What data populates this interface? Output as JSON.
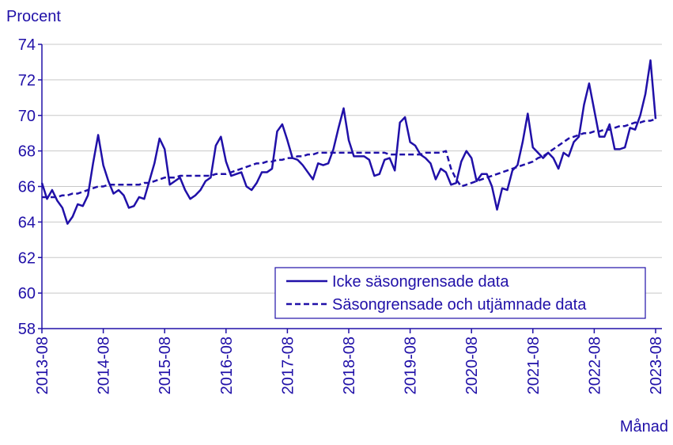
{
  "chart_data": {
    "type": "line",
    "y_label": "Procent",
    "x_label": "Månad",
    "categories": [
      "2013-08",
      null,
      null,
      null,
      null,
      null,
      null,
      null,
      null,
      null,
      null,
      null,
      "2014-08",
      null,
      null,
      null,
      null,
      null,
      null,
      null,
      null,
      null,
      null,
      null,
      "2015-08",
      null,
      null,
      null,
      null,
      null,
      null,
      null,
      null,
      null,
      null,
      null,
      "2016-08",
      null,
      null,
      null,
      null,
      null,
      null,
      null,
      null,
      null,
      null,
      null,
      "2017-08",
      null,
      null,
      null,
      null,
      null,
      null,
      null,
      null,
      null,
      null,
      null,
      "2018-08",
      null,
      null,
      null,
      null,
      null,
      null,
      null,
      null,
      null,
      null,
      null,
      "2019-08",
      null,
      null,
      null,
      null,
      null,
      null,
      null,
      null,
      null,
      null,
      null,
      "2020-08",
      null,
      null,
      null,
      null,
      null,
      null,
      null,
      null,
      null,
      null,
      null,
      "2021-08",
      null,
      null,
      null,
      null,
      null,
      null,
      null,
      null,
      null,
      null,
      null,
      "2022-08",
      null,
      null,
      null,
      null,
      null,
      null,
      null,
      null,
      null,
      null,
      null,
      "2023-08"
    ],
    "series": [
      {
        "name": "Icke säsongrensade data",
        "color": "#2010a8",
        "line_style": "solid",
        "values": [
          66.2,
          65.3,
          65.8,
          65.2,
          64.8,
          63.9,
          64.3,
          65.0,
          64.9,
          65.5,
          67.3,
          68.9,
          67.2,
          66.3,
          65.6,
          65.8,
          65.5,
          64.8,
          64.9,
          65.4,
          65.3,
          66.3,
          67.3,
          68.7,
          68.1,
          66.1,
          66.3,
          66.5,
          65.8,
          65.3,
          65.5,
          65.8,
          66.3,
          66.5,
          68.3,
          68.8,
          67.4,
          66.6,
          66.7,
          66.8,
          66.0,
          65.8,
          66.2,
          66.8,
          66.8,
          67.0,
          69.1,
          69.5,
          68.6,
          67.6,
          67.5,
          67.2,
          66.8,
          66.4,
          67.3,
          67.2,
          67.3,
          68.1,
          69.3,
          70.4,
          68.6,
          67.7,
          67.7,
          67.7,
          67.5,
          66.6,
          66.7,
          67.5,
          67.6,
          66.9,
          69.6,
          69.9,
          68.5,
          68.3,
          67.8,
          67.6,
          67.3,
          66.4,
          67.0,
          66.8,
          66.1,
          66.2,
          67.4,
          68.0,
          67.6,
          66.3,
          66.7,
          66.7,
          66.0,
          64.7,
          65.9,
          65.8,
          66.9,
          67.2,
          68.5,
          70.1,
          68.2,
          67.9,
          67.6,
          67.9,
          67.6,
          67.0,
          67.9,
          67.7,
          68.5,
          68.8,
          70.6,
          71.8,
          70.3,
          68.8,
          68.8,
          69.5,
          68.1,
          68.1,
          68.2,
          69.3,
          69.2,
          70.0,
          71.2,
          73.1,
          69.8
        ]
      },
      {
        "name": "Säsongrensade och utjämnade data",
        "color": "#2010a8",
        "line_style": "dashed",
        "values": [
          65.4,
          65.4,
          65.4,
          65.4,
          65.5,
          65.5,
          65.6,
          65.6,
          65.7,
          65.8,
          65.9,
          66.0,
          66.0,
          66.1,
          66.1,
          66.1,
          66.1,
          66.1,
          66.1,
          66.1,
          66.2,
          66.2,
          66.3,
          66.4,
          66.5,
          66.5,
          66.5,
          66.6,
          66.6,
          66.6,
          66.6,
          66.6,
          66.6,
          66.6,
          66.7,
          66.7,
          66.7,
          66.8,
          66.9,
          67.0,
          67.1,
          67.2,
          67.3,
          67.3,
          67.4,
          67.4,
          67.5,
          67.5,
          67.6,
          67.6,
          67.7,
          67.7,
          67.8,
          67.8,
          67.9,
          67.9,
          67.9,
          67.9,
          67.9,
          67.9,
          67.9,
          67.9,
          67.9,
          67.9,
          67.9,
          67.9,
          67.9,
          67.9,
          67.8,
          67.8,
          67.8,
          67.8,
          67.8,
          67.8,
          67.8,
          67.9,
          67.9,
          67.9,
          67.9,
          68.0,
          67.0,
          66.4,
          66.0,
          66.1,
          66.2,
          66.3,
          66.4,
          66.5,
          66.6,
          66.7,
          66.8,
          66.9,
          67.0,
          67.1,
          67.2,
          67.3,
          67.4,
          67.6,
          67.7,
          67.9,
          68.1,
          68.3,
          68.5,
          68.7,
          68.8,
          68.9,
          69.0,
          69.0,
          69.1,
          69.1,
          69.2,
          69.2,
          69.3,
          69.4,
          69.4,
          69.5,
          69.6,
          69.6,
          69.7,
          69.7,
          69.8
        ]
      }
    ],
    "ylim": [
      58,
      74
    ],
    "yticks": [
      58,
      60,
      62,
      64,
      66,
      68,
      70,
      72,
      74
    ],
    "grid": true,
    "legend": "lower right"
  }
}
